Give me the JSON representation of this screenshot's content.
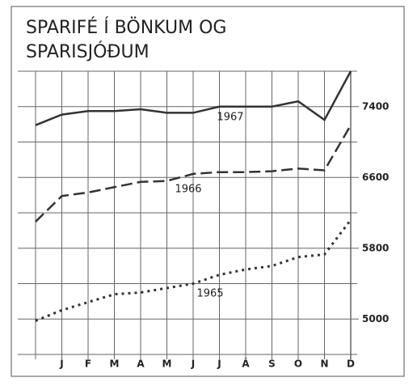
{
  "chart_data": {
    "type": "line",
    "title": [
      "SPARIFÉ Í BÖNKUM OG",
      "SPARISJÓÐUM"
    ],
    "categories": [
      null,
      "J",
      "F",
      "M",
      "A",
      "M",
      "J",
      "J",
      "Á",
      "S",
      "O",
      "N",
      "D"
    ],
    "series": [
      {
        "name": "1967",
        "color": "#333333",
        "style": "solid",
        "values": [
          7190,
          7310,
          7350,
          7350,
          7370,
          7330,
          7330,
          7400,
          7400,
          7400,
          7460,
          7250,
          7800
        ]
      },
      {
        "name": "1966",
        "color": "#333333",
        "style": "dashed",
        "values": [
          6100,
          6390,
          6430,
          6490,
          6550,
          6560,
          6640,
          6660,
          6660,
          6670,
          6700,
          6680,
          7190
        ]
      },
      {
        "name": "1965",
        "color": "#333333",
        "style": "dotted",
        "values": [
          4980,
          5100,
          5190,
          5280,
          5300,
          5350,
          5400,
          5500,
          5560,
          5600,
          5700,
          5730,
          6120
        ]
      }
    ],
    "ylim": [
      4600,
      7800
    ],
    "yticks": [
      5000,
      5800,
      6600,
      7400
    ],
    "minor_yticks": [
      4600,
      5400,
      6200,
      7000,
      7800
    ],
    "grid": true
  }
}
